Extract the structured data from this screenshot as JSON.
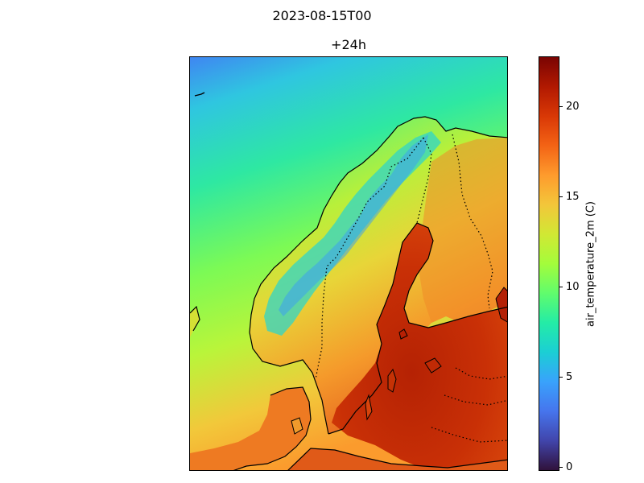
{
  "figure": {
    "suptitle": "2023-08-15T00",
    "panel_title": "+24h"
  },
  "colorbar": {
    "label": "air_temperature_2m (C)",
    "ticks": [
      "0",
      "5",
      "10",
      "15",
      "20"
    ],
    "tick_values": [
      0,
      5,
      10,
      15,
      20
    ],
    "vmin": -0.2,
    "vmax": 22.8,
    "colormap": "turbo",
    "colors": [
      "#30123b",
      "#4145ab",
      "#4675ed",
      "#39a2fc",
      "#1bcfd4",
      "#24eca6",
      "#61fc6c",
      "#a4fc3b",
      "#d1e834",
      "#f3c63a",
      "#fe9b2d",
      "#f36315",
      "#d93806",
      "#b11901",
      "#7a0402"
    ]
  },
  "map": {
    "region": "Scandinavia / Fennoscandia",
    "coastline_color": "#000000",
    "border_style": "dotted"
  }
}
